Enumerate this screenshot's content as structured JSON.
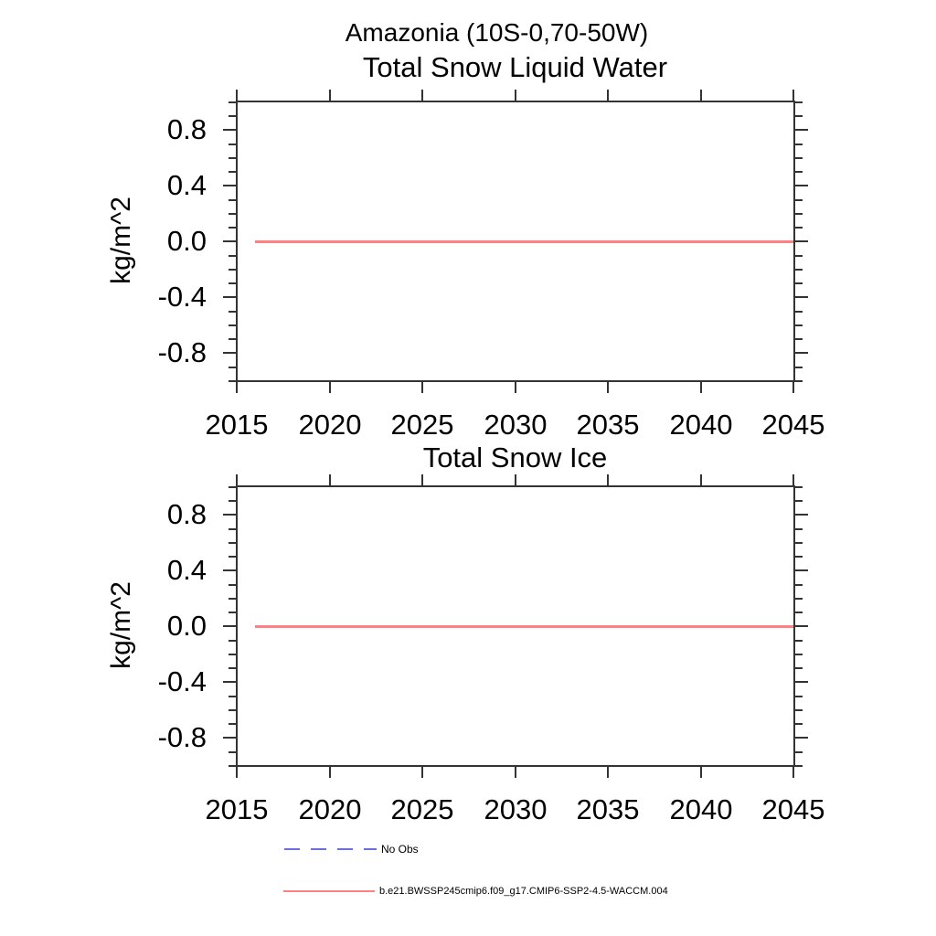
{
  "figure": {
    "suptitle": "Amazonia (10S-0,70-50W)",
    "background": "#ffffff"
  },
  "style": {
    "axis_color": "#333333",
    "text_color": "#000000",
    "series_color": "#ff8080",
    "no_obs_color": "#6e6edc"
  },
  "chart_data": [
    {
      "type": "line",
      "title": "Total Snow Liquid Water",
      "xlabel": "",
      "ylabel": "kg/m^2",
      "xlim": [
        2015,
        2045
      ],
      "ylim": [
        -1.0,
        1.0
      ],
      "x_ticks": [
        2015,
        2020,
        2025,
        2030,
        2035,
        2040,
        2045
      ],
      "x_tick_labels": [
        "2015",
        "2020",
        "2025",
        "2030",
        "2035",
        "2040",
        "2045"
      ],
      "y_ticks": [
        0.8,
        0.4,
        0.0,
        -0.4,
        -0.8
      ],
      "y_tick_labels": [
        "0.8",
        "0.4",
        "0.0",
        "-0.4",
        "-0.8"
      ],
      "y_minor_step": 0.1,
      "grid": false,
      "series": [
        {
          "name": "b.e21.BWSSP245cmip6.f09_g17.CMIP6-SSP2-4.5-WACCM.004",
          "color": "#ff8080",
          "x": [
            2016,
            2045
          ],
          "values": [
            0.0,
            0.0
          ]
        }
      ]
    },
    {
      "type": "line",
      "title": "Total Snow Ice",
      "xlabel": "",
      "ylabel": "kg/m^2",
      "xlim": [
        2015,
        2045
      ],
      "ylim": [
        -1.0,
        1.0
      ],
      "x_ticks": [
        2015,
        2020,
        2025,
        2030,
        2035,
        2040,
        2045
      ],
      "x_tick_labels": [
        "2015",
        "2020",
        "2025",
        "2030",
        "2035",
        "2040",
        "2045"
      ],
      "y_ticks": [
        0.8,
        0.4,
        0.0,
        -0.4,
        -0.8
      ],
      "y_tick_labels": [
        "0.8",
        "0.4",
        "0.0",
        "-0.4",
        "-0.8"
      ],
      "y_minor_step": 0.1,
      "grid": false,
      "series": [
        {
          "name": "b.e21.BWSSP245cmip6.f09_g17.CMIP6-SSP2-4.5-WACCM.004",
          "color": "#ff8080",
          "x": [
            2016,
            2045
          ],
          "values": [
            0.0,
            0.0
          ]
        }
      ]
    }
  ],
  "legend": {
    "position": "bottom",
    "entries": [
      {
        "label": "No Obs",
        "style": "dashed",
        "color": "#6e6edc"
      },
      {
        "label": "b.e21.BWSSP245cmip6.f09_g17.CMIP6-SSP2-4.5-WACCM.004",
        "style": "solid",
        "color": "#ff8080"
      }
    ]
  }
}
